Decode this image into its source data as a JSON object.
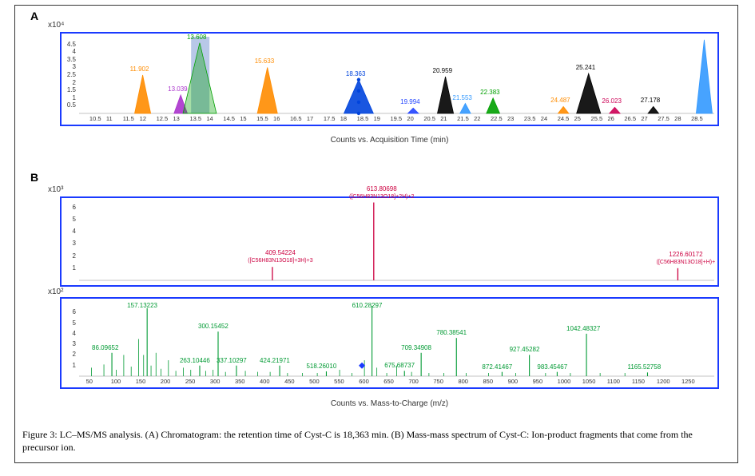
{
  "panel_a_label": "A",
  "panel_b_label": "B",
  "caption": "Figure 3: LC–MS/MS analysis. (A) Chromatogram: the retention time of Cyst-C is 18,363 min. (B) Mass-mass spectrum of Cyst-C: Ion-product fragments that come from the precursor ion.",
  "chartA": {
    "type": "chromatogram",
    "y_units_label": "x10⁴",
    "x_axis_label": "Counts vs. Acquisition Time (min)",
    "background_color": "#ffffff",
    "border_color": "#1a3aff",
    "gridline_color": "#e0e0e0",
    "text_color": "#333333",
    "x_range": [
      10,
      29
    ],
    "y_range": [
      0,
      5.0
    ],
    "x_ticks": [
      10.5,
      11,
      11.5,
      12,
      12.5,
      13,
      13.5,
      14,
      14.5,
      15,
      15.5,
      16,
      16.5,
      17,
      17.5,
      18,
      18.5,
      19,
      19.5,
      20,
      20.5,
      21,
      21.5,
      22,
      22.5,
      23,
      23.5,
      24,
      24.5,
      25,
      25.5,
      26,
      26.5,
      27,
      27.5,
      28,
      28.5
    ],
    "y_ticks": [
      0.5,
      1,
      1.5,
      2,
      2.5,
      3,
      3.5,
      4,
      4.5
    ],
    "peaks": [
      {
        "rt": 11.902,
        "height": 2.5,
        "label": "11.902",
        "color": "#ff8c00",
        "width": 0.12
      },
      {
        "rt": 13.039,
        "height": 1.2,
        "label": "13.039",
        "color": "#aa33cc",
        "width": 0.1
      },
      {
        "rt": 13.608,
        "height": 4.6,
        "label": "13.608",
        "color": "#00a000",
        "width": 0.25,
        "shaded": true
      },
      {
        "rt": 15.633,
        "height": 3.0,
        "label": "15.633",
        "color": "#ff8c00",
        "width": 0.15
      },
      {
        "rt": 18.363,
        "height": 2.2,
        "label": "18.363",
        "color": "#0044dd",
        "width": 0.22,
        "markers": true
      },
      {
        "rt": 19.994,
        "height": 0.35,
        "label": "19.994",
        "color": "#2244ff",
        "width": 0.08
      },
      {
        "rt": 20.959,
        "height": 2.4,
        "label": "20.959",
        "color": "#000000",
        "width": 0.12
      },
      {
        "rt": 21.553,
        "height": 0.65,
        "label": "21.553",
        "color": "#3399ff",
        "width": 0.08
      },
      {
        "rt": 22.383,
        "height": 1.0,
        "label": "22.383",
        "color": "#00a000",
        "width": 0.1
      },
      {
        "rt": 24.487,
        "height": 0.45,
        "label": "24.487",
        "color": "#ff8c00",
        "width": 0.08
      },
      {
        "rt": 25.241,
        "height": 2.6,
        "label": "25.241",
        "color": "#000000",
        "width": 0.18
      },
      {
        "rt": 26.023,
        "height": 0.4,
        "label": "26.023",
        "color": "#cc0055",
        "width": 0.08
      },
      {
        "rt": 27.178,
        "height": 0.45,
        "label": "27.178",
        "color": "#000000",
        "width": 0.08
      },
      {
        "rt": 28.7,
        "height": 4.8,
        "label": "",
        "color": "#3399ff",
        "width": 0.12
      }
    ],
    "highlight_band": {
      "from": 13.35,
      "to": 13.9,
      "color": "#b8c8e8"
    }
  },
  "chartB1": {
    "type": "mass-spectrum",
    "y_units_label": "x10³",
    "background_color": "#ffffff",
    "border_color": "#1a3aff",
    "text_color": "#333333",
    "x_range": [
      20,
      1300
    ],
    "y_range": [
      0,
      6.5
    ],
    "y_ticks": [
      1,
      2,
      3,
      4,
      5,
      6
    ],
    "peaks": [
      {
        "mz": 409.54224,
        "height": 1.1,
        "label": "409.54224",
        "sub": "([C56H83N13O18]+3H)+3",
        "color": "#cc0040"
      },
      {
        "mz": 613.80698,
        "height": 6.4,
        "label": "613.80698",
        "sub": "([C56H83N13O18]+2H)+2",
        "color": "#cc0040"
      },
      {
        "mz": 1226.60172,
        "height": 1.0,
        "label": "1226.60172",
        "sub": "([C56H83N13O18]+H)+",
        "color": "#cc0040"
      }
    ]
  },
  "chartB2": {
    "type": "mass-spectrum",
    "y_units_label": "x10²",
    "x_axis_label": "Counts vs. Mass-to-Charge (m/z)",
    "background_color": "#ffffff",
    "border_color": "#1a3aff",
    "text_color": "#333333",
    "x_range": [
      20,
      1300
    ],
    "y_range": [
      0,
      7
    ],
    "x_ticks": [
      50,
      100,
      150,
      200,
      250,
      300,
      350,
      400,
      450,
      500,
      550,
      600,
      650,
      700,
      750,
      800,
      850,
      900,
      950,
      1000,
      1050,
      1100,
      1150,
      1200,
      1250
    ],
    "y_ticks": [
      1,
      2,
      3,
      4,
      5,
      6
    ],
    "marker": {
      "mz": 590,
      "y": 1.0,
      "color": "#1a3aff"
    },
    "labeled_peaks": [
      {
        "mz": 86.09652,
        "height": 2.2,
        "label": "86.09652",
        "color": "#009a33"
      },
      {
        "mz": 157.13223,
        "height": 6.4,
        "label": "157.13223",
        "color": "#009a33"
      },
      {
        "mz": 263.10446,
        "height": 1.0,
        "label": "263.10446",
        "color": "#009a33"
      },
      {
        "mz": 300.15452,
        "height": 4.2,
        "label": "300.15452",
        "color": "#009a33"
      },
      {
        "mz": 337.10297,
        "height": 1.0,
        "label": "337.10297",
        "color": "#009a33"
      },
      {
        "mz": 424.21971,
        "height": 1.0,
        "label": "424.21971",
        "color": "#009a33"
      },
      {
        "mz": 518.2601,
        "height": 0.45,
        "label": "518.26010",
        "color": "#009a33"
      },
      {
        "mz": 610.28297,
        "height": 6.6,
        "label": "610.28297",
        "color": "#009a33"
      },
      {
        "mz": 675.68737,
        "height": 0.5,
        "label": "675.68737",
        "color": "#009a33"
      },
      {
        "mz": 709.34908,
        "height": 2.2,
        "label": "709.34908",
        "color": "#009a33"
      },
      {
        "mz": 780.38541,
        "height": 3.6,
        "label": "780.38541",
        "color": "#009a33"
      },
      {
        "mz": 872.41467,
        "height": 0.4,
        "label": "872.41467",
        "color": "#009a33"
      },
      {
        "mz": 927.45282,
        "height": 2.0,
        "label": "927.45282",
        "color": "#009a33"
      },
      {
        "mz": 983.45467,
        "height": 0.4,
        "label": "983.45467",
        "color": "#009a33"
      },
      {
        "mz": 1042.48327,
        "height": 4.0,
        "label": "1042.48327",
        "color": "#009a33"
      },
      {
        "mz": 1165.52758,
        "height": 0.35,
        "label": "1165.52758",
        "color": "#009a33"
      }
    ],
    "noise_peaks": [
      {
        "mz": 45,
        "h": 0.8
      },
      {
        "mz": 70,
        "h": 1.1
      },
      {
        "mz": 95,
        "h": 0.6
      },
      {
        "mz": 110,
        "h": 2.0
      },
      {
        "mz": 125,
        "h": 0.9
      },
      {
        "mz": 140,
        "h": 3.5
      },
      {
        "mz": 150,
        "h": 2.0
      },
      {
        "mz": 165,
        "h": 1.0
      },
      {
        "mz": 175,
        "h": 2.2
      },
      {
        "mz": 185,
        "h": 0.7
      },
      {
        "mz": 200,
        "h": 1.5
      },
      {
        "mz": 215,
        "h": 0.5
      },
      {
        "mz": 230,
        "h": 0.8
      },
      {
        "mz": 245,
        "h": 0.6
      },
      {
        "mz": 275,
        "h": 0.5
      },
      {
        "mz": 290,
        "h": 0.6
      },
      {
        "mz": 315,
        "h": 0.4
      },
      {
        "mz": 355,
        "h": 0.5
      },
      {
        "mz": 380,
        "h": 0.4
      },
      {
        "mz": 405,
        "h": 0.4
      },
      {
        "mz": 440,
        "h": 0.3
      },
      {
        "mz": 470,
        "h": 0.3
      },
      {
        "mz": 500,
        "h": 0.3
      },
      {
        "mz": 545,
        "h": 0.6
      },
      {
        "mz": 570,
        "h": 0.3
      },
      {
        "mz": 595,
        "h": 1.5
      },
      {
        "mz": 620,
        "h": 0.8
      },
      {
        "mz": 640,
        "h": 0.3
      },
      {
        "mz": 660,
        "h": 1.0
      },
      {
        "mz": 690,
        "h": 0.4
      },
      {
        "mz": 725,
        "h": 0.3
      },
      {
        "mz": 755,
        "h": 0.3
      },
      {
        "mz": 800,
        "h": 0.3
      },
      {
        "mz": 845,
        "h": 0.3
      },
      {
        "mz": 900,
        "h": 0.3
      },
      {
        "mz": 960,
        "h": 0.3
      },
      {
        "mz": 1010,
        "h": 0.3
      },
      {
        "mz": 1070,
        "h": 0.3
      },
      {
        "mz": 1120,
        "h": 0.3
      }
    ]
  }
}
